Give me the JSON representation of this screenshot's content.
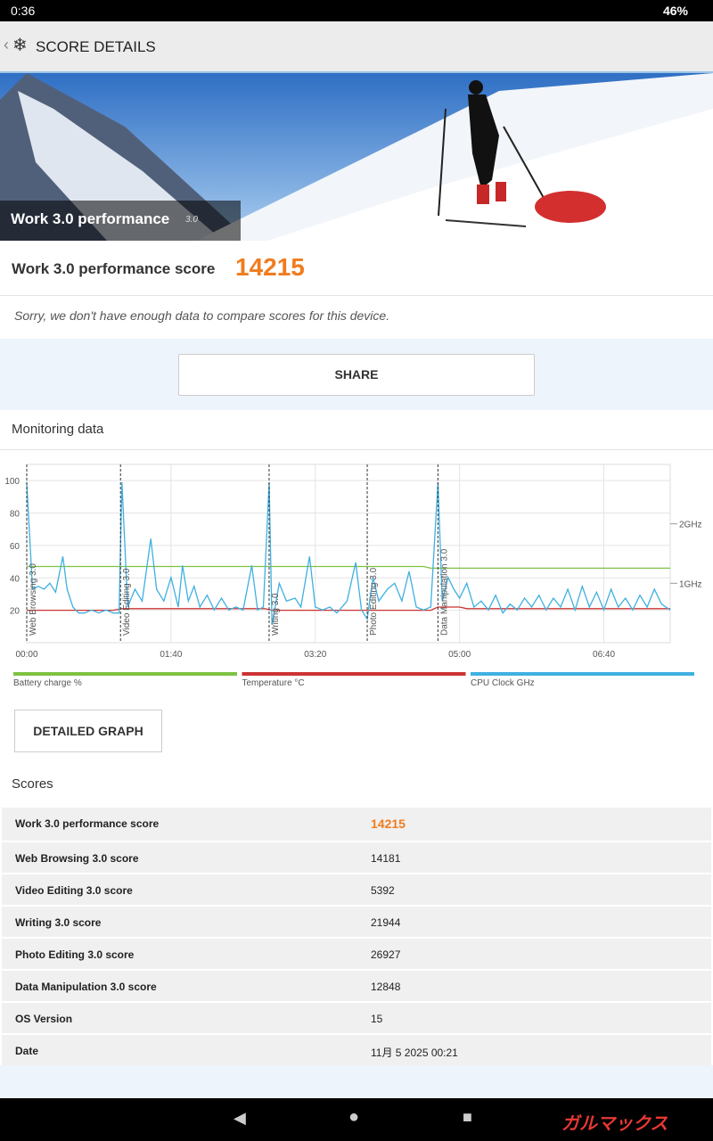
{
  "status_bar": {
    "time": "0:36",
    "battery": "46%"
  },
  "header": {
    "title": "SCORE DETAILS"
  },
  "banner": {
    "title": "Work 3.0 performance",
    "version": "3.0"
  },
  "score": {
    "label": "Work 3.0 performance score",
    "value": 14215
  },
  "notice": "Sorry, we don't have enough data to compare scores for this device.",
  "share_button": "SHARE",
  "monitoring": {
    "title": "Monitoring data",
    "chart": {
      "type": "line",
      "xlim": [
        0,
        446
      ],
      "xticks": [
        {
          "value": 0,
          "label": "00:00"
        },
        {
          "value": 100,
          "label": "01:40"
        },
        {
          "value": 200,
          "label": "03:20"
        },
        {
          "value": 300,
          "label": "05:00"
        },
        {
          "value": 400,
          "label": "06:40"
        }
      ],
      "ylim": [
        0,
        110
      ],
      "yticks": [
        20,
        40,
        60,
        80,
        100
      ],
      "y2lim": [
        0,
        3
      ],
      "y2ticks": [
        {
          "value": 1,
          "label": "1GHz"
        },
        {
          "value": 2,
          "label": "2GHz"
        }
      ],
      "grid": true,
      "sections": [
        {
          "label": "Web Browsing 3.0",
          "x": 0
        },
        {
          "label": "Video Editing 3.0",
          "x": 65
        },
        {
          "label": "Writing 3.0",
          "x": 168
        },
        {
          "label": "Photo Editing 3.0",
          "x": 236
        },
        {
          "label": "Data Manipulation 3.0",
          "x": 285
        }
      ],
      "series": [
        {
          "name": "Battery charge %",
          "color": "#7dc242",
          "x": [
            0,
            275,
            280,
            446
          ],
          "values": [
            47,
            47,
            46,
            46
          ]
        },
        {
          "name": "Temperature °C",
          "color": "#cc3333",
          "x": [
            0,
            60,
            66,
            165,
            170,
            280,
            285,
            300,
            305,
            446
          ],
          "values": [
            20,
            20,
            21,
            21,
            20,
            20,
            22,
            22,
            21,
            21
          ]
        },
        {
          "name": "CPU Clock GHz",
          "color": "#3fb0e0",
          "axis": "y2",
          "x": [
            0,
            4,
            8,
            12,
            16,
            20,
            25,
            28,
            32,
            36,
            40,
            45,
            50,
            55,
            60,
            64,
            66,
            70,
            75,
            80,
            86,
            90,
            95,
            100,
            105,
            108,
            112,
            116,
            120,
            125,
            130,
            135,
            140,
            145,
            150,
            156,
            160,
            164,
            168,
            170,
            175,
            180,
            186,
            190,
            196,
            200,
            205,
            210,
            215,
            222,
            228,
            232,
            236,
            240,
            244,
            250,
            255,
            260,
            265,
            270,
            275,
            280,
            285,
            288,
            292,
            296,
            300,
            305,
            310,
            315,
            320,
            325,
            330,
            335,
            340,
            345,
            350,
            355,
            360,
            365,
            370,
            375,
            380,
            385,
            390,
            395,
            400,
            405,
            410,
            415,
            420,
            425,
            430,
            435,
            440,
            446
          ],
          "values": [
            2.7,
            0.9,
            0.95,
            0.9,
            1.0,
            0.85,
            1.45,
            0.9,
            0.6,
            0.5,
            0.5,
            0.55,
            0.5,
            0.55,
            0.5,
            0.5,
            2.7,
            0.6,
            0.9,
            0.7,
            1.75,
            0.9,
            0.7,
            1.1,
            0.6,
            1.3,
            0.7,
            0.95,
            0.6,
            0.8,
            0.55,
            0.75,
            0.55,
            0.6,
            0.55,
            1.3,
            0.55,
            0.6,
            2.7,
            0.3,
            1.0,
            0.7,
            0.75,
            0.6,
            1.45,
            0.6,
            0.55,
            0.6,
            0.5,
            0.7,
            1.35,
            0.55,
            0.4,
            1.1,
            0.7,
            0.9,
            1.0,
            0.7,
            1.2,
            0.6,
            0.55,
            0.6,
            2.7,
            0.7,
            1.1,
            0.9,
            0.75,
            1.0,
            0.6,
            0.7,
            0.55,
            0.8,
            0.5,
            0.65,
            0.55,
            0.75,
            0.6,
            0.8,
            0.55,
            0.75,
            0.6,
            0.9,
            0.55,
            0.95,
            0.6,
            0.85,
            0.55,
            0.9,
            0.6,
            0.75,
            0.55,
            0.8,
            0.6,
            0.9,
            0.65,
            0.55
          ]
        }
      ]
    }
  },
  "detailed_graph_button": "DETAILED GRAPH",
  "scores": {
    "title": "Scores",
    "rows": [
      [
        "Work 3.0 performance score",
        14215
      ],
      [
        "Web Browsing 3.0 score",
        14181
      ],
      [
        "Video Editing 3.0 score",
        5392
      ],
      [
        "Writing 3.0 score",
        21944
      ],
      [
        "Photo Editing 3.0 score",
        26927
      ],
      [
        "Data Manipulation 3.0 score",
        12848
      ],
      [
        "OS Version",
        15
      ],
      [
        "Date",
        "11月 5 2025 00:21"
      ]
    ]
  },
  "watermark": "ガルマックス"
}
